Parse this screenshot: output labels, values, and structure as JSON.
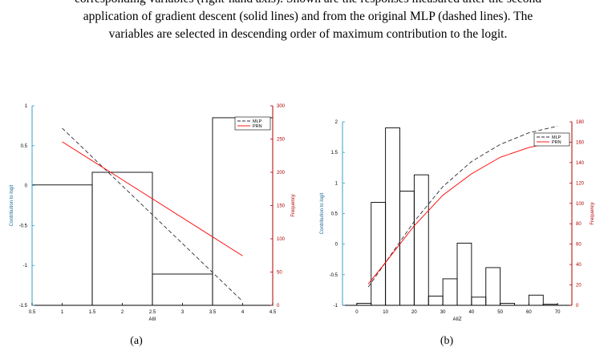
{
  "caption": {
    "lines": [
      "corresponding variables (right-hand axis). Shown are the responses measured after the second",
      "application of gradient descent (solid lines) and from the original MLP (dashed lines). The",
      "variables are selected in descending order of maximum contribution to the logit."
    ]
  },
  "colors": {
    "mlp": "#2a2a3a",
    "prn": "#ff0000",
    "left_axis": "#33a0c8",
    "right_axis": "#b00000",
    "bars": "#000000"
  },
  "chart_data": [
    {
      "type": "bar",
      "panel_label": "(a)",
      "xlabel": "AIII",
      "ylabel": "Contribution to logit",
      "y2label": "Frequency",
      "xlim": [
        0.5,
        4.5
      ],
      "ylim": [
        -1.5,
        1
      ],
      "y2lim": [
        0,
        300
      ],
      "xticks": [
        "0.5",
        "1",
        "1.5",
        "2",
        "2.5",
        "3",
        "3.5",
        "4",
        "4.5"
      ],
      "yticks": [
        "-1.5",
        "-1",
        "-0.5",
        "0",
        "0.5",
        "1"
      ],
      "y2ticks": [
        "0",
        "50",
        "100",
        "150",
        "200",
        "250",
        "300"
      ],
      "legend": [
        "MLP",
        "PRN"
      ],
      "legend_position": "top-right",
      "histogram": {
        "edges": [
          0.5,
          1.5,
          2.5,
          3.5,
          4.5
        ],
        "frequency": [
          181,
          200,
          47,
          282
        ]
      },
      "series": [
        {
          "name": "MLP",
          "style": "dashed",
          "x": [
            1,
            4
          ],
          "y": [
            0.72,
            -1.45
          ]
        },
        {
          "name": "PRN",
          "style": "solid",
          "x": [
            1,
            4
          ],
          "y": [
            0.55,
            -0.88
          ]
        }
      ]
    },
    {
      "type": "bar",
      "panel_label": "(b)",
      "xlabel": "AIIZ",
      "ylabel": "Contribution to logit",
      "y2label": "Frequency",
      "xlim": [
        -5,
        75
      ],
      "ylim": [
        -1,
        2
      ],
      "y2lim": [
        0,
        180
      ],
      "xticks": [
        "0",
        "10",
        "20",
        "30",
        "40",
        "50",
        "60",
        "70"
      ],
      "yticks": [
        "-1",
        "-0.5",
        "0",
        "0.5",
        "1",
        "1.5",
        "2"
      ],
      "y2ticks": [
        "0",
        "20",
        "40",
        "60",
        "80",
        "100",
        "120",
        "140",
        "160",
        "180"
      ],
      "legend": [
        "MLP",
        "PRN"
      ],
      "legend_position": "top-right",
      "histogram": {
        "edges": [
          0,
          5,
          10,
          15,
          20,
          25,
          30,
          35,
          40,
          45,
          50,
          55,
          60,
          65,
          70,
          75
        ],
        "frequency": [
          2,
          101,
          174,
          112,
          128,
          9,
          26,
          61,
          8,
          37,
          2,
          0,
          10,
          1,
          0
        ]
      },
      "series": [
        {
          "name": "MLP",
          "style": "dashed",
          "x": [
            4,
            10,
            20,
            30,
            40,
            50,
            60,
            70
          ],
          "y": [
            -0.7,
            -0.3,
            0.37,
            0.94,
            1.35,
            1.63,
            1.82,
            1.93
          ]
        },
        {
          "name": "PRN",
          "style": "solid",
          "x": [
            4,
            10,
            20,
            30,
            40,
            50,
            60,
            70
          ],
          "y": [
            -0.65,
            -0.3,
            0.3,
            0.8,
            1.15,
            1.42,
            1.58,
            1.68
          ]
        }
      ]
    }
  ]
}
